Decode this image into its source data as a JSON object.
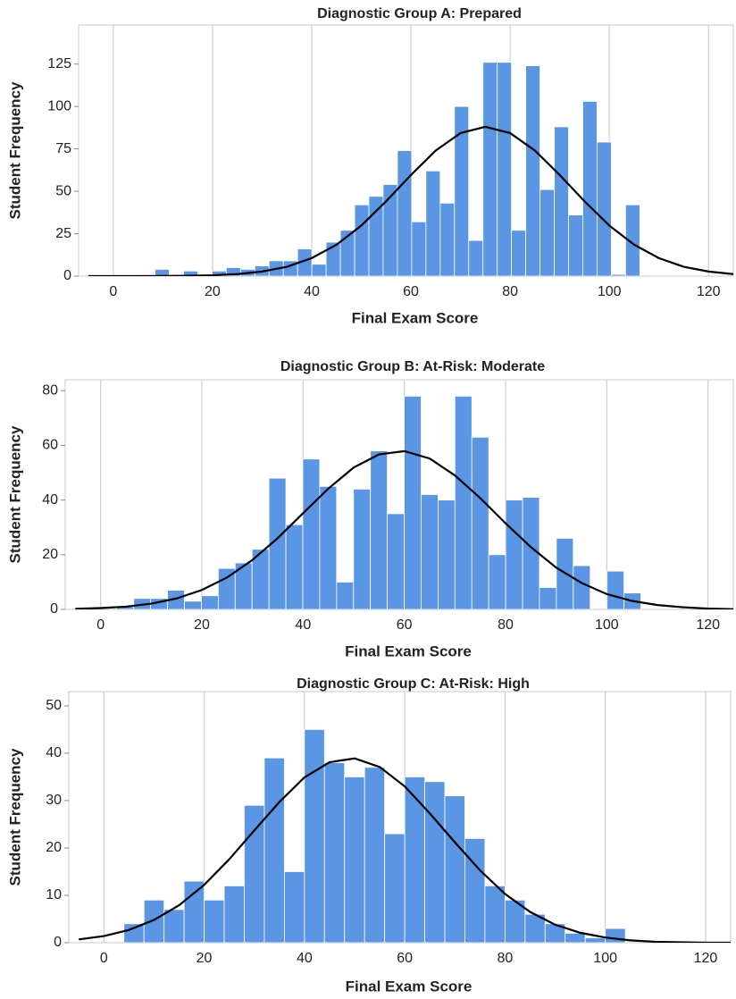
{
  "chart_data": [
    {
      "type": "histogram",
      "title": "Diagnostic Group A: Prepared",
      "xlabel": "Final Exam Score",
      "ylabel": "Student Frequency",
      "bins": [
        8.4,
        11.275,
        14.15,
        17.025,
        19.9,
        22.775,
        25.65,
        28.525,
        31.4,
        34.275,
        37.15,
        40.025,
        42.9,
        45.775,
        48.65,
        51.525,
        54.4,
        57.275,
        60.15,
        63.025,
        65.9,
        68.775,
        71.65,
        74.525,
        77.4,
        80.275,
        83.15,
        86.025,
        88.9,
        91.775,
        94.65,
        97.525,
        100.4,
        103.275,
        106.15
      ],
      "values": [
        4,
        0,
        3,
        0,
        3,
        5,
        4,
        6,
        9,
        9,
        16,
        7,
        20,
        27,
        42,
        47,
        54,
        74,
        32,
        62,
        43,
        100,
        21,
        126,
        126,
        27,
        124,
        51,
        88,
        36,
        103,
        79,
        1,
        42
      ],
      "color": "#5a96e3",
      "curve": {
        "color": "#000000",
        "x": [
          -5,
          0,
          5,
          10,
          15,
          20,
          25,
          30,
          35,
          40,
          45,
          50,
          55,
          60,
          65,
          70,
          75,
          80,
          85,
          90,
          95,
          100,
          105,
          110,
          115,
          120,
          125
        ],
        "values": [
          0.0,
          0.0,
          0.0,
          0.1,
          0.2,
          0.5,
          1.2,
          2.7,
          5.5,
          10.6,
          18.5,
          29.8,
          44.1,
          59.6,
          74.0,
          84.3,
          88,
          84.3,
          74.0,
          59.6,
          44.1,
          29.8,
          18.5,
          10.6,
          5.5,
          2.7,
          1.2
        ]
      },
      "xlim": [
        -7,
        125
      ],
      "ylim": [
        0,
        148
      ],
      "xticks": [
        0,
        20,
        40,
        60,
        80,
        100,
        120
      ],
      "yticks": [
        0,
        25,
        50,
        75,
        100,
        125
      ],
      "grid": "x"
    },
    {
      "type": "histogram",
      "title": "Diagnostic Group B: At-Risk: Moderate",
      "xlabel": "Final Exam Score",
      "ylabel": "Student Frequency",
      "bins": [
        3.2,
        6.54,
        9.88,
        13.22,
        16.56,
        19.9,
        23.24,
        26.58,
        29.92,
        33.26,
        36.6,
        39.94,
        43.28,
        46.62,
        49.96,
        53.3,
        56.64,
        59.98,
        63.32,
        66.66,
        70.0,
        73.34,
        76.68,
        80.02,
        83.36,
        86.7,
        90.04,
        93.38,
        96.72,
        100.06,
        103.4,
        106.74
      ],
      "values": [
        1,
        4,
        4,
        7,
        3,
        5,
        15,
        17,
        22,
        48,
        31,
        55,
        45,
        10,
        44,
        58,
        35,
        78,
        42,
        40,
        78,
        63,
        20,
        40,
        41,
        8,
        26,
        16,
        0,
        14,
        6
      ],
      "color": "#5a96e3",
      "curve": {
        "color": "#000000",
        "x": [
          -5,
          0,
          5,
          10,
          15,
          20,
          25,
          30,
          35,
          40,
          45,
          50,
          55,
          60,
          65,
          70,
          75,
          80,
          85,
          90,
          95,
          100,
          105,
          110,
          115,
          120,
          125
        ],
        "values": [
          0.2,
          0.5,
          1.0,
          2.1,
          4.0,
          7.1,
          11.7,
          18.1,
          26.1,
          35.2,
          44.2,
          51.9,
          56.7,
          57.9,
          55.2,
          49.0,
          40.7,
          31.5,
          22.8,
          15.3,
          9.7,
          5.6,
          3.1,
          1.6,
          0.8,
          0.3,
          0.1
        ]
      },
      "xlim": [
        -7,
        125
      ],
      "ylim": [
        0,
        84
      ],
      "xticks": [
        0,
        20,
        40,
        60,
        80,
        100,
        120
      ],
      "yticks": [
        0,
        20,
        40,
        60,
        80
      ],
      "grid": "x"
    },
    {
      "type": "histogram",
      "title": "Diagnostic Group C: At-Risk: High",
      "xlabel": "Final Exam Score",
      "ylabel": "Student Frequency",
      "bins": [
        4,
        8,
        12,
        16,
        20,
        24,
        28,
        32,
        36,
        40,
        44,
        48,
        52,
        56,
        60,
        64,
        68,
        72,
        76,
        80,
        84,
        88,
        92,
        96,
        100,
        104
      ],
      "values": [
        4,
        9,
        7,
        13,
        9,
        12,
        29,
        39,
        15,
        45,
        38,
        35,
        37,
        23,
        35,
        34,
        31,
        22,
        12,
        9,
        6,
        4,
        2,
        1,
        3
      ],
      "color": "#5a96e3",
      "curve": {
        "color": "#000000",
        "x": [
          -5,
          0,
          5,
          10,
          15,
          20,
          25,
          30,
          35,
          40,
          45,
          50,
          55,
          60,
          65,
          70,
          75,
          80,
          85,
          90,
          95,
          100,
          105,
          110,
          115,
          120,
          125
        ],
        "values": [
          0.7,
          1.4,
          2.7,
          4.8,
          7.9,
          12.2,
          17.6,
          23.7,
          29.7,
          34.9,
          38.1,
          38.9,
          37.1,
          33.0,
          27.3,
          21.2,
          15.3,
          10.3,
          6.5,
          3.8,
          2.1,
          1.1,
          0.5,
          0.2,
          0.1,
          0.0,
          0.0
        ]
      },
      "xlim": [
        -7,
        125
      ],
      "ylim": [
        0,
        53
      ],
      "xticks": [
        0,
        20,
        40,
        60,
        80,
        100,
        120
      ],
      "yticks": [
        0,
        10,
        20,
        30,
        40,
        50
      ],
      "grid": "x"
    }
  ]
}
